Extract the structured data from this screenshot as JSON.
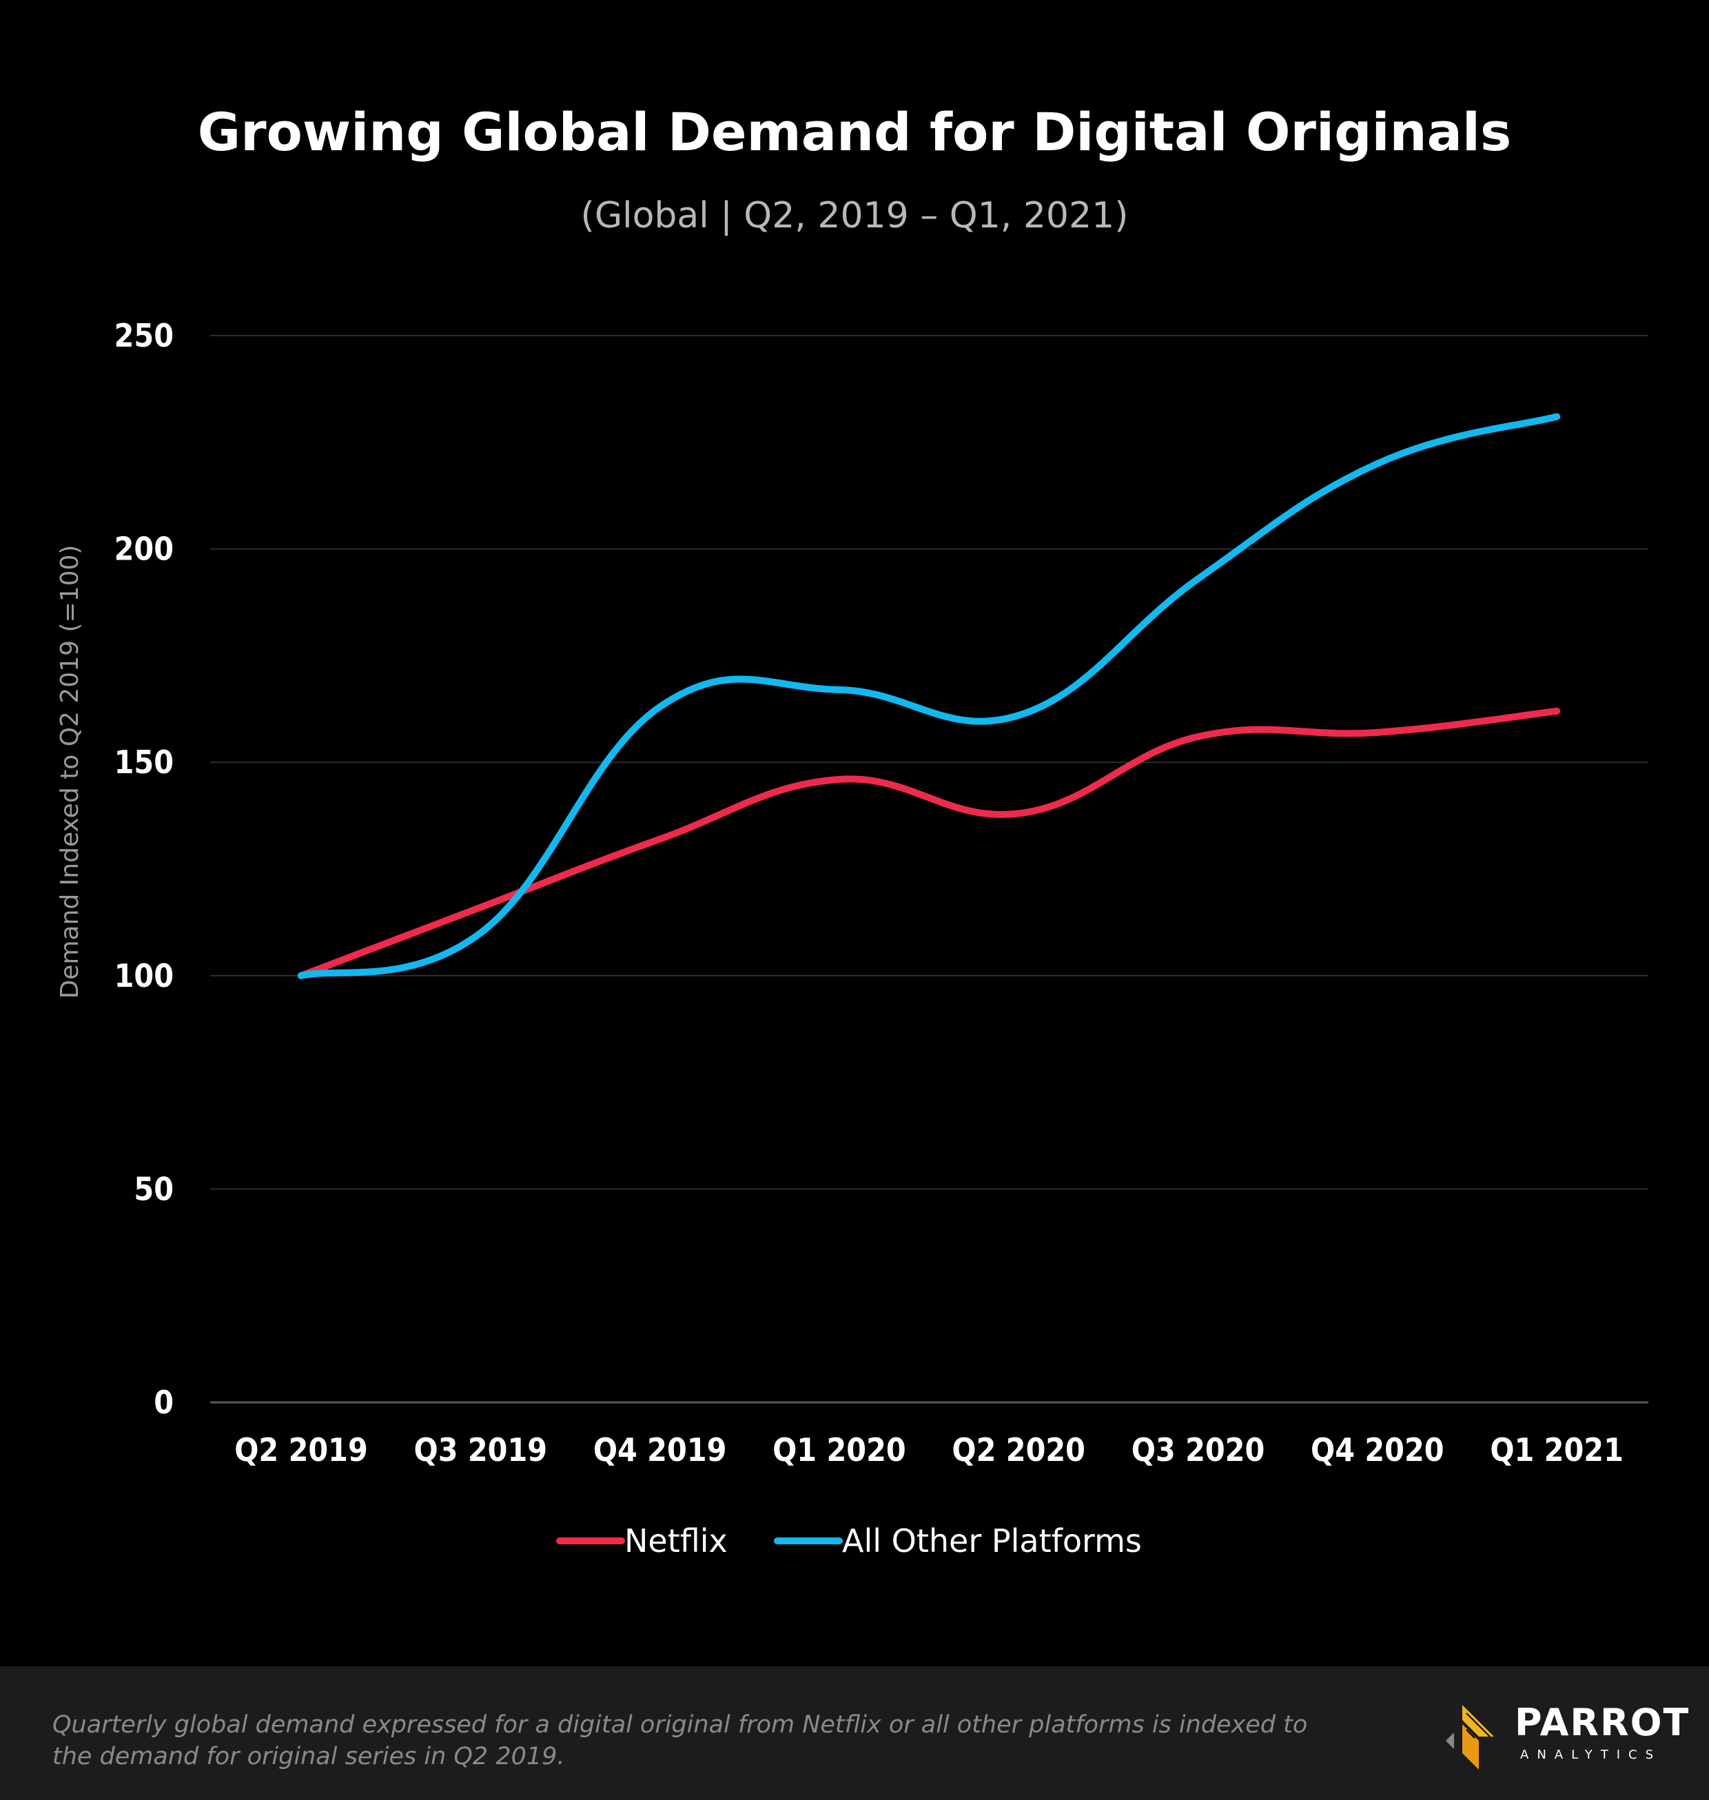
{
  "colors": {
    "background": "#000000",
    "footer_background": "#1c1c1c",
    "grid": "#2e2e2e",
    "netflix": "#ee2a4d",
    "other": "#12b8f0",
    "logo_gold": "#f0b41e"
  },
  "chart_data": {
    "type": "line",
    "title": "Growing Global Demand for Digital Originals",
    "subtitle": "(Global  |  Q2, 2019 – Q1, 2021)",
    "ylabel": "Demand Indexed to Q2 2019 (=100)",
    "xlabel": "",
    "ylim": [
      0,
      250
    ],
    "yticks": [
      0,
      50,
      100,
      150,
      200,
      250
    ],
    "grid": true,
    "legend_position": "bottom-center",
    "categories": [
      "Q2 2019",
      "Q3 2019",
      "Q4 2019",
      "Q1 2020",
      "Q2 2020",
      "Q3 2020",
      "Q4 2020",
      "Q1 2021"
    ],
    "series": [
      {
        "name": "Netflix",
        "color": "#ee2a4d",
        "values": [
          100,
          116,
          132,
          146,
          138,
          156,
          157,
          162
        ]
      },
      {
        "name": "All Other Platforms",
        "color": "#12b8f0",
        "values": [
          100,
          110,
          163,
          167,
          161,
          193,
          220,
          231
        ]
      }
    ]
  },
  "footer": {
    "note_line1": "Quarterly global demand expressed for a digital original from Netflix or all other platforms is indexed to",
    "note_line2": "the demand for original series in Q2 2019."
  },
  "brand": {
    "name": "PARROT",
    "sub": "ANALYTICS",
    "icon": "parrot-logo-icon"
  }
}
